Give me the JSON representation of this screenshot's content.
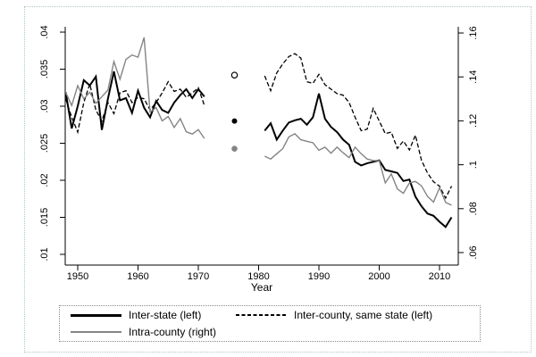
{
  "legend": {
    "items": [
      {
        "label": "Inter-state (left)",
        "sample": "solid-black-thick-line"
      },
      {
        "label": "Inter-county, same state (left)",
        "sample": "dashed-black-line"
      },
      {
        "label": "Intra-county (right)",
        "sample": "solid-gray-line"
      }
    ]
  },
  "chart_data": {
    "type": "line",
    "xlabel": "Year",
    "grid": "off",
    "legend_position": "bottom",
    "x_axis": {
      "range": [
        1948,
        2013
      ],
      "ticks": [
        1950,
        1960,
        1970,
        1980,
        1990,
        2000,
        2010
      ]
    },
    "left_axis": {
      "range": [
        0.01,
        0.04
      ],
      "ticks": [
        0.01,
        0.015,
        0.02,
        0.025,
        0.03,
        0.035,
        0.04
      ],
      "tick_labels": [
        ".01",
        ".015",
        ".02",
        ".025",
        ".03",
        ".035",
        ".04"
      ]
    },
    "right_axis": {
      "range": [
        0.06,
        0.16
      ],
      "ticks": [
        0.06,
        0.08,
        0.1,
        0.12,
        0.14,
        0.16
      ],
      "tick_labels": [
        ".06",
        ".08",
        ".1",
        ".12",
        ".14",
        ".16"
      ]
    },
    "series": [
      {
        "name": "Inter-state (left)",
        "axis": "left",
        "color": "#000000",
        "style": "solid",
        "width": 2,
        "segments": [
          {
            "start_year": 1948,
            "values": [
              0.0319,
              0.027,
              0.03,
              0.0335,
              0.0328,
              0.034,
              0.0268,
              0.031,
              0.0347,
              0.0308,
              0.0311,
              0.0291,
              0.0321,
              0.0298,
              0.0285,
              0.0307,
              0.0295,
              0.0291,
              0.0305,
              0.0315,
              0.0323,
              0.0311,
              0.0323,
              0.0313
            ]
          },
          {
            "start_year": 1981,
            "values": [
              0.0267,
              0.0277,
              0.0255,
              0.0267,
              0.0278,
              0.0281,
              0.0283,
              0.0275,
              0.0285,
              0.0317,
              0.0283,
              0.0272,
              0.0265,
              0.0255,
              0.0248,
              0.0225,
              0.022,
              0.0223,
              0.0225,
              0.0227,
              0.0214,
              0.0212,
              0.021,
              0.0199,
              0.0201,
              0.0178,
              0.0165,
              0.0155,
              0.0152,
              0.0144,
              0.0137,
              0.015
            ]
          }
        ],
        "isolated_points": [
          {
            "year": 1976,
            "value": 0.028,
            "marker": "filled-black-circle"
          }
        ]
      },
      {
        "name": "Inter-county, same state (left)",
        "axis": "left",
        "color": "#000000",
        "style": "dashed",
        "width": 1.3,
        "segments": [
          {
            "start_year": 1948,
            "values": [
              0.031,
              0.0285,
              0.0265,
              0.0305,
              0.033,
              0.0295,
              0.028,
              0.0305,
              0.029,
              0.0318,
              0.0321,
              0.0305,
              0.0312,
              0.031,
              0.0295,
              0.0305,
              0.0318,
              0.0333,
              0.032,
              0.0323,
              0.0312,
              0.0318,
              0.0325,
              0.0301
            ]
          },
          {
            "start_year": 1981,
            "values": [
              0.0341,
              0.0321,
              0.0345,
              0.0357,
              0.0367,
              0.0371,
              0.0365,
              0.0333,
              0.0331,
              0.0343,
              0.0329,
              0.0323,
              0.0317,
              0.0315,
              0.0305,
              0.0285,
              0.0267,
              0.0269,
              0.0297,
              0.028,
              0.0263,
              0.0265,
              0.0243,
              0.0253,
              0.0241,
              0.0261,
              0.0227,
              0.021,
              0.0198,
              0.0192,
              0.0176,
              0.0192
            ]
          }
        ],
        "isolated_points": [
          {
            "year": 1976,
            "value": 0.0342,
            "marker": "hollow-circle"
          }
        ]
      },
      {
        "name": "Intra-county (right)",
        "axis": "right",
        "color": "#848484",
        "style": "solid",
        "width": 1.4,
        "segments": [
          {
            "start_year": 1948,
            "values": [
              0.133,
              0.127,
              0.136,
              0.13,
              0.133,
              0.128,
              0.131,
              0.134,
              0.147,
              0.139,
              0.148,
              0.15,
              0.149,
              0.158,
              0.124,
              0.126,
              0.12,
              0.122,
              0.117,
              0.121,
              0.115,
              0.114,
              0.116,
              0.112
            ]
          },
          {
            "start_year": 1981,
            "values": [
              0.1039,
              0.1026,
              0.105,
              0.1073,
              0.1127,
              0.1141,
              0.1114,
              0.1107,
              0.11,
              0.1066,
              0.108,
              0.1053,
              0.108,
              0.1055,
              0.1032,
              0.108,
              0.105,
              0.1026,
              0.1019,
              0.1019,
              0.0917,
              0.0958,
              0.089,
              0.087,
              0.0917,
              0.0924,
              0.0904,
              0.0856,
              0.083,
              0.0895,
              0.0829,
              0.0816
            ]
          }
        ],
        "isolated_points": [
          {
            "year": 1976,
            "value": 0.1073,
            "marker": "filled-gray-circle"
          }
        ]
      }
    ]
  }
}
